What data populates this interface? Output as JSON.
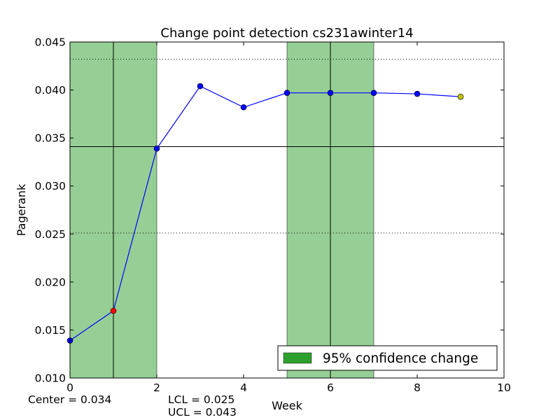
{
  "chart_data": {
    "type": "line",
    "title": "Change point detection cs231awinter14",
    "xlabel": "Week",
    "ylabel": "Pagerank",
    "xlim": [
      0,
      10
    ],
    "ylim": [
      0.01,
      0.045
    ],
    "x_ticks": [
      "0",
      "2",
      "4",
      "6",
      "8",
      "10"
    ],
    "y_ticks": [
      "0.010",
      "0.015",
      "0.020",
      "0.025",
      "0.030",
      "0.035",
      "0.040",
      "0.045"
    ],
    "grid": false,
    "series": [
      {
        "x": [
          0,
          1,
          2,
          3,
          4,
          5,
          6,
          7,
          8,
          9
        ],
        "values": [
          0.0139,
          0.017,
          0.0339,
          0.0404,
          0.0382,
          0.0397,
          0.0397,
          0.0397,
          0.0396,
          0.0393
        ],
        "color": "#0000ff",
        "marker_colors": [
          "#0000ff",
          "#ff0000",
          "#0000ff",
          "#0000ff",
          "#0000ff",
          "#0000ff",
          "#0000ff",
          "#0000ff",
          "#0000ff",
          "#bfbf00"
        ]
      }
    ],
    "center_line": 0.0341,
    "control_limits": {
      "lcl": 0.0251,
      "ucl": 0.0432
    },
    "change_regions": [
      {
        "from": 0,
        "to": 2,
        "center": 1
      },
      {
        "from": 5,
        "to": 7,
        "center": 6
      }
    ],
    "region_color": "#2ca02c",
    "legend": {
      "label": "95% confidence change",
      "position": "lower-right"
    },
    "annotations": {
      "center": "Center = 0.034",
      "lcl": "LCL = 0.025",
      "ucl": "UCL = 0.043"
    }
  }
}
